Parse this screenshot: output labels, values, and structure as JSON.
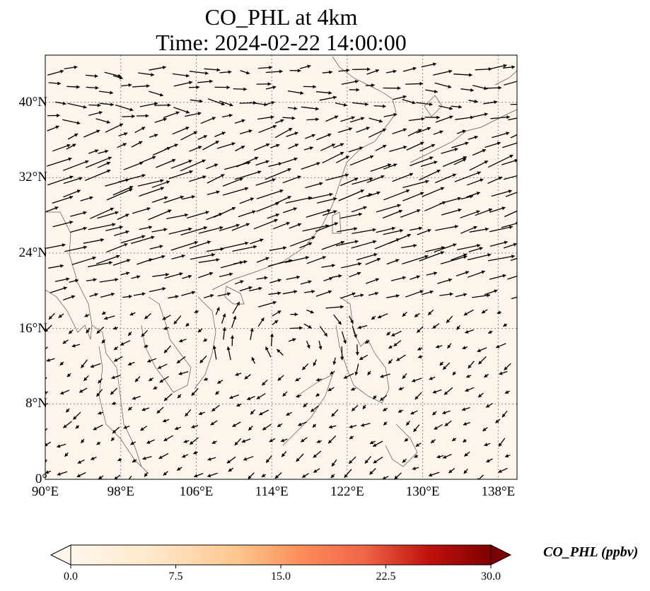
{
  "title": {
    "line1": "CO_PHL at 4km",
    "line2": "Time: 2024-02-22 14:00:00"
  },
  "map": {
    "lon_range": [
      90,
      140
    ],
    "lat_range": [
      0,
      45
    ],
    "background_color": "#fdf5eb",
    "coastline_color": "#555555",
    "grid_style": "dotted",
    "grid_color": "#888888"
  },
  "axes": {
    "x_ticks": [
      {
        "value": 90,
        "label": "90°E"
      },
      {
        "value": 98,
        "label": "98°E"
      },
      {
        "value": 106,
        "label": "106°E"
      },
      {
        "value": 114,
        "label": "114°E"
      },
      {
        "value": 122,
        "label": "122°E"
      },
      {
        "value": 130,
        "label": "130°E"
      },
      {
        "value": 138,
        "label": "138°E"
      }
    ],
    "y_ticks": [
      {
        "value": 0,
        "label": "0°"
      },
      {
        "value": 8,
        "label": "8°N"
      },
      {
        "value": 16,
        "label": "16°N"
      },
      {
        "value": 24,
        "label": "24°N"
      },
      {
        "value": 32,
        "label": "32°N"
      },
      {
        "value": 40,
        "label": "40°N"
      }
    ]
  },
  "wind": {
    "field": "quiver",
    "description_regions": [
      {
        "lat": [
          28,
          45
        ],
        "dominant_direction": "east-northeast",
        "relative_speed": "strong"
      },
      {
        "lat": [
          18,
          28
        ],
        "dominant_direction": "east-northeast",
        "relative_speed": "strong"
      },
      {
        "lat": [
          0,
          16
        ],
        "dominant_direction": "southwest",
        "relative_speed": "weak"
      }
    ]
  },
  "colorbar": {
    "label": "CO_PHL (ppbv)",
    "colormap": "OrRd",
    "min": 0.0,
    "max": 30.0,
    "ticks": [
      {
        "value": 0.0,
        "label": "0.0"
      },
      {
        "value": 7.5,
        "label": "7.5"
      },
      {
        "value": 15.0,
        "label": "15.0"
      },
      {
        "value": 22.5,
        "label": "22.5"
      },
      {
        "value": 30.0,
        "label": "30.0"
      }
    ],
    "extend": "both"
  }
}
